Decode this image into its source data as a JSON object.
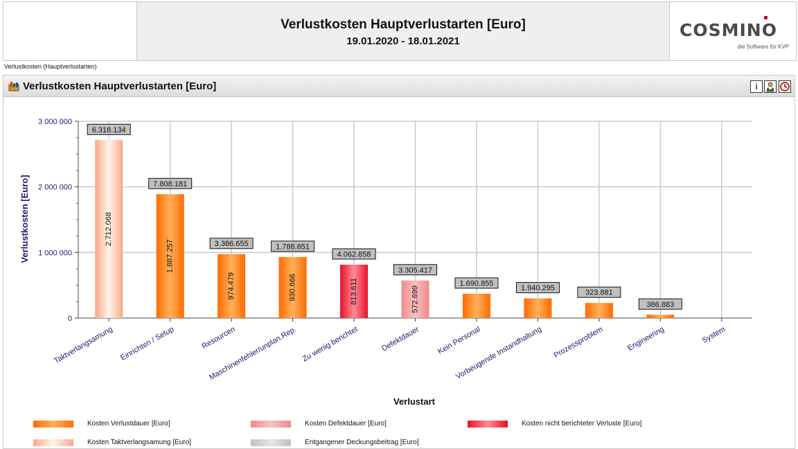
{
  "header": {
    "title": "Verlustkosten Hauptverlustarten [Euro]",
    "period": "19.01.2020 - 18.01.2021",
    "logo_text": "COSMINO",
    "logo_sub": "die Software für KVP"
  },
  "breadcrumb": "Verlustkosten (Hauptverlustarten)",
  "panel": {
    "title": "Verlustkosten Hauptverlustarten [Euro]",
    "info_label": "i"
  },
  "colors": {
    "orange": "#ff6a00",
    "pink": "#f08a8a",
    "red": "#e8102a",
    "peach": "#f8a88a",
    "gray": "#c0c0c0",
    "axis_text": "#1a1a6e"
  },
  "chart_data": {
    "type": "bar",
    "xlabel": "Verlustart",
    "ylabel": "Verlustkosten [Euro]",
    "ylim": [
      0,
      3000000
    ],
    "yticks": [
      {
        "value": 0,
        "label": "0"
      },
      {
        "value": 1000000,
        "label": "1 000 000"
      },
      {
        "value": 2000000,
        "label": "2 000 000"
      },
      {
        "value": 3000000,
        "label": "3 000 000"
      }
    ],
    "grid": true,
    "legend_position": "bottom",
    "categories": [
      "Taktverlangsamung",
      "Einrichten / Setup",
      "Resourcen",
      "Maschinenfehler/unplan.Rep.",
      "Zu wenig berichtet",
      "Defektdauer",
      "Kein Personal",
      "Vorbeugende Instandhaltung",
      "Prozessproblem",
      "Engineering",
      "System"
    ],
    "values": [
      2712068,
      1887257,
      974479,
      930666,
      813611,
      572699,
      370000,
      300000,
      230000,
      50000,
      0
    ],
    "value_labels": [
      "2.712.068",
      "1.887.257",
      "974.479",
      "930.666",
      "813.611",
      "572.699",
      "",
      "",
      "",
      "",
      ""
    ],
    "top_labels": [
      "6.318.134",
      "7.808.181",
      "3.386.655",
      "1.788.651",
      "4.062.858",
      "3.305.417",
      "1.690.855",
      "1.940.295",
      "323.881",
      "386.883",
      ""
    ],
    "bar_series": [
      "peach",
      "orange",
      "orange",
      "orange",
      "red",
      "pink",
      "orange",
      "orange",
      "orange",
      "orange",
      "orange"
    ],
    "legend": [
      {
        "label": "Kosten Verlustdauer [Euro]",
        "color": "orange"
      },
      {
        "label": "Kosten Defektdauer [Euro]",
        "color": "pink"
      },
      {
        "label": "Kosten nicht berichteter Verluste [Euro]",
        "color": "red"
      },
      {
        "label": "Kosten Taktverlangsamung [Euro]",
        "color": "peach"
      },
      {
        "label": "Entgangener Deckungsbeitrag [Euro]",
        "color": "gray"
      }
    ]
  }
}
